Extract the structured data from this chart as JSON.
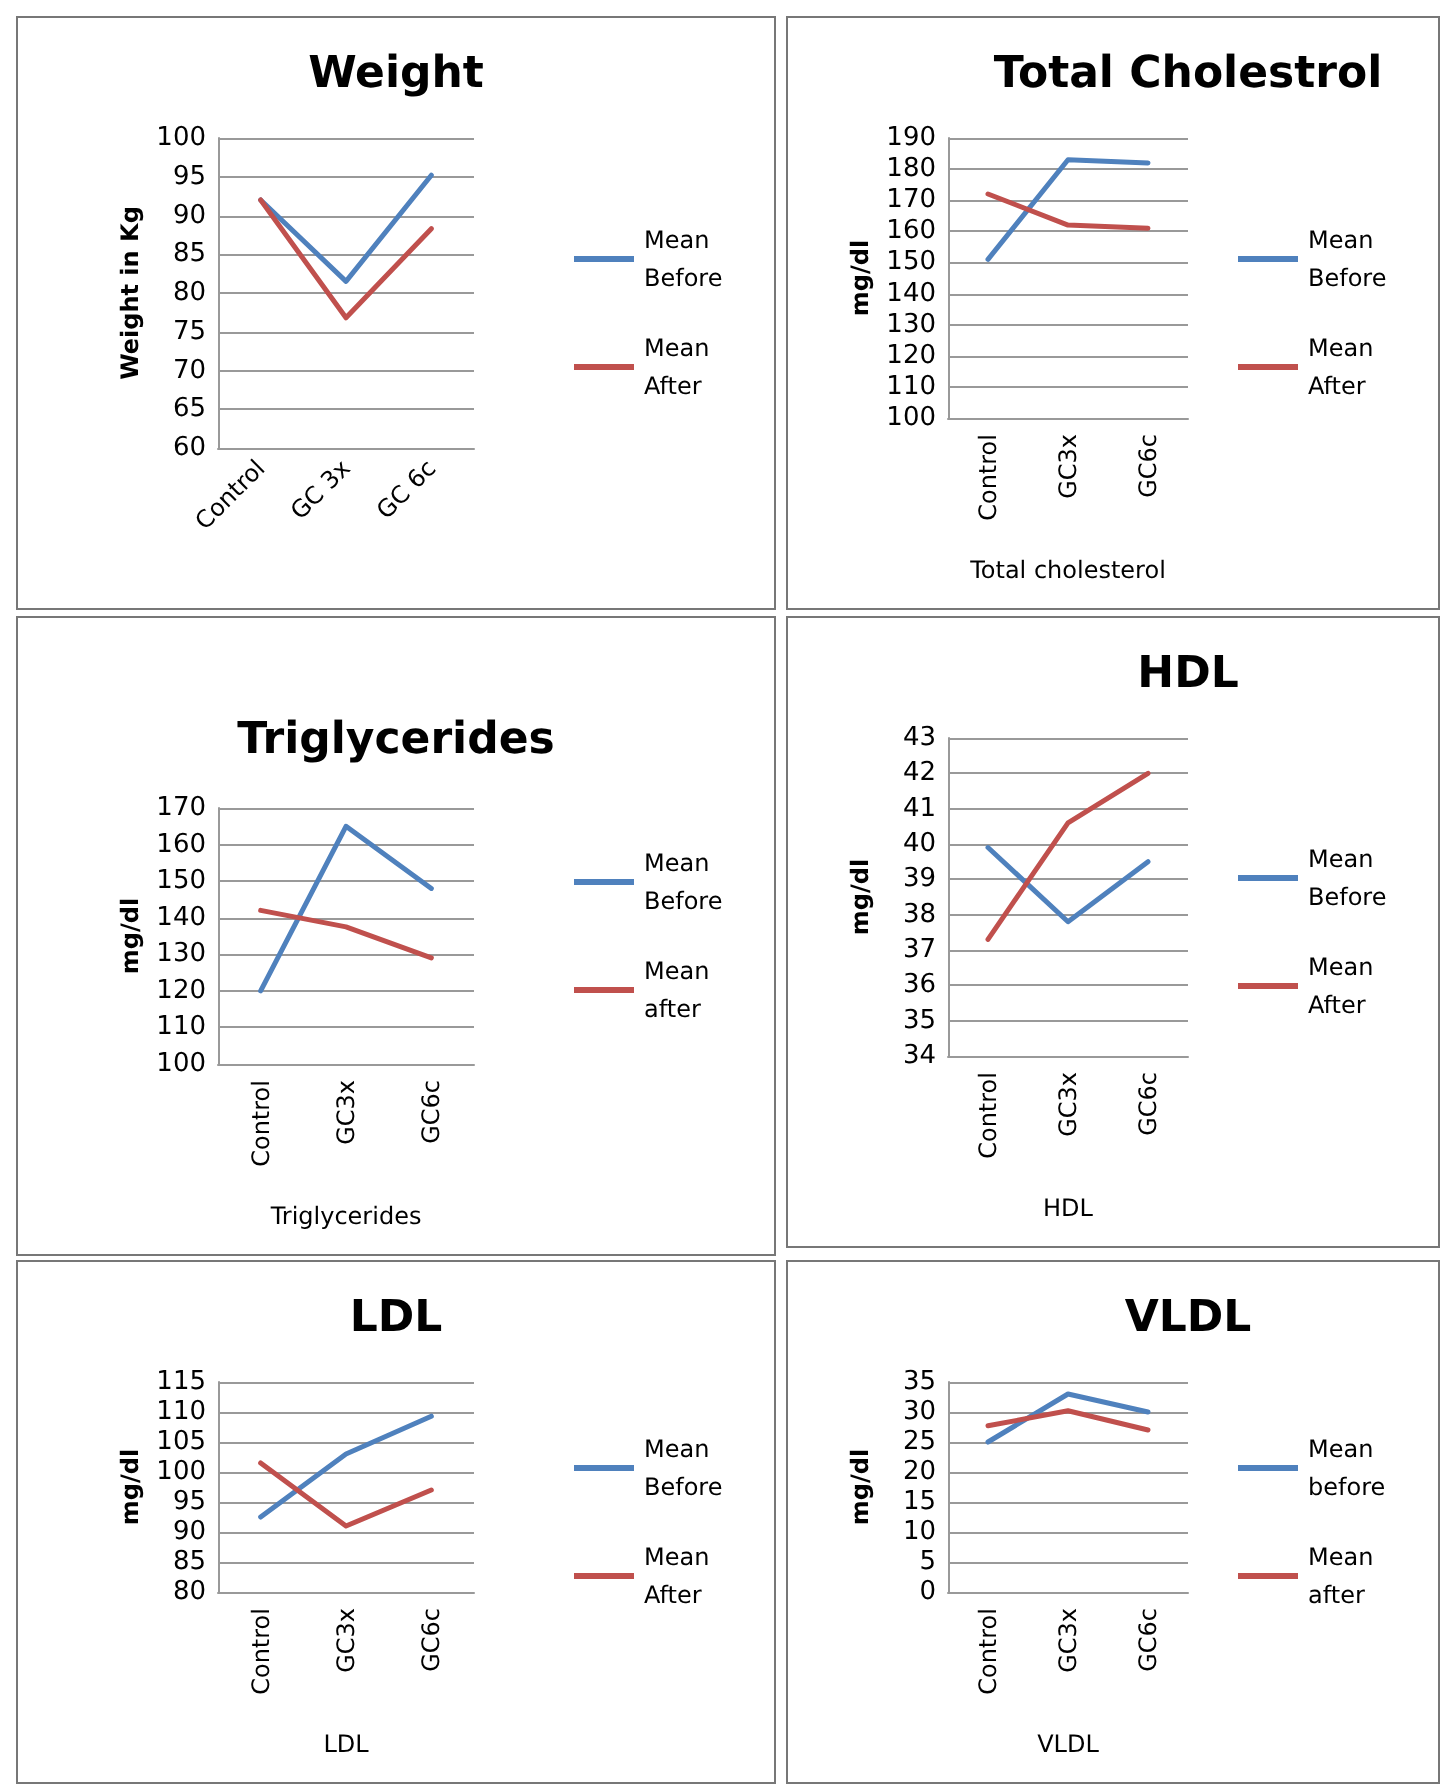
{
  "chart_data": [
    {
      "type": "line",
      "title": "Weight",
      "ylabel": "Weight in Kg",
      "categories": [
        "Control",
        "GC 3x",
        "GC 6c"
      ],
      "series": [
        {
          "name": "Mean Before",
          "color": "#4f81bd",
          "values": [
            92,
            81.5,
            95.2
          ]
        },
        {
          "name": "Mean  After",
          "color": "#c0504d",
          "values": [
            92,
            76.8,
            88.3
          ]
        }
      ],
      "ylim": [
        60,
        100
      ],
      "yticks": [
        60,
        65,
        70,
        75,
        80,
        85,
        90,
        95,
        100
      ],
      "grid": "y",
      "legend": "right",
      "marker": "none"
    },
    {
      "type": "line",
      "title": "Total Cholestrol",
      "ylabel": "mg/dl",
      "xlabel": "Total cholesterol",
      "categories": [
        "Control",
        "GC3x",
        "GC6c"
      ],
      "series": [
        {
          "name": "Mean Before",
          "color": "#4f81bd",
          "values": [
            151,
            183,
            182
          ]
        },
        {
          "name": "Mean After",
          "color": "#c0504d",
          "values": [
            172,
            162,
            161
          ]
        }
      ],
      "ylim": [
        100,
        190
      ],
      "yticks": [
        100,
        110,
        120,
        130,
        140,
        150,
        160,
        170,
        180,
        190
      ],
      "grid": "y",
      "legend": "right",
      "marker": "none"
    },
    {
      "type": "line",
      "title": "Triglycerides",
      "ylabel": "mg/dl",
      "xlabel": "Triglycerides",
      "categories": [
        "Control",
        "GC3x",
        "GC6c"
      ],
      "series": [
        {
          "name": "Mean Before",
          "color": "#4f81bd",
          "values": [
            120,
            165,
            148
          ]
        },
        {
          "name": "Mean after",
          "color": "#c0504d",
          "values": [
            142,
            137.5,
            129
          ]
        }
      ],
      "ylim": [
        100,
        170
      ],
      "yticks": [
        100,
        110,
        120,
        130,
        140,
        150,
        160,
        170
      ],
      "grid": "y",
      "legend": "right",
      "marker": "none"
    },
    {
      "type": "line",
      "title": "HDL",
      "ylabel": "mg/dl",
      "xlabel": "HDL",
      "categories": [
        "Control",
        "GC3x",
        "GC6c"
      ],
      "series": [
        {
          "name": "Mean Before",
          "color": "#4f81bd",
          "values": [
            39.9,
            37.8,
            39.5
          ]
        },
        {
          "name": "Mean After",
          "color": "#c0504d",
          "values": [
            37.3,
            40.6,
            42
          ]
        }
      ],
      "ylim": [
        34,
        43
      ],
      "yticks": [
        34,
        35,
        36,
        37,
        38,
        39,
        40,
        41,
        42,
        43
      ],
      "grid": "y",
      "legend": "right",
      "marker": "none"
    },
    {
      "type": "line",
      "title": "LDL",
      "ylabel": "mg/dl",
      "xlabel": "LDL",
      "categories": [
        "Control",
        "GC3x",
        "GC6c"
      ],
      "series": [
        {
          "name": "Mean Before",
          "color": "#4f81bd",
          "values": [
            92.5,
            103,
            109.3
          ]
        },
        {
          "name": "Mean After",
          "color": "#c0504d",
          "values": [
            101.5,
            91,
            97
          ]
        }
      ],
      "ylim": [
        80,
        115
      ],
      "yticks": [
        80,
        85,
        90,
        95,
        100,
        105,
        110,
        115
      ],
      "grid": "y",
      "legend": "right",
      "marker": "none"
    },
    {
      "type": "line",
      "title": "VLDL",
      "ylabel": "mg/dl",
      "xlabel": "VLDL",
      "categories": [
        "Control",
        "GC3x",
        "GC6c"
      ],
      "series": [
        {
          "name": "Mean before",
          "color": "#4f81bd",
          "values": [
            25,
            33,
            30
          ]
        },
        {
          "name": "Mean after",
          "color": "#c0504d",
          "values": [
            27.7,
            30.2,
            27
          ]
        }
      ],
      "ylim": [
        0,
        35
      ],
      "yticks": [
        0,
        5,
        10,
        15,
        20,
        25,
        30,
        35
      ],
      "grid": "y",
      "legend": "right",
      "marker": "none"
    }
  ]
}
